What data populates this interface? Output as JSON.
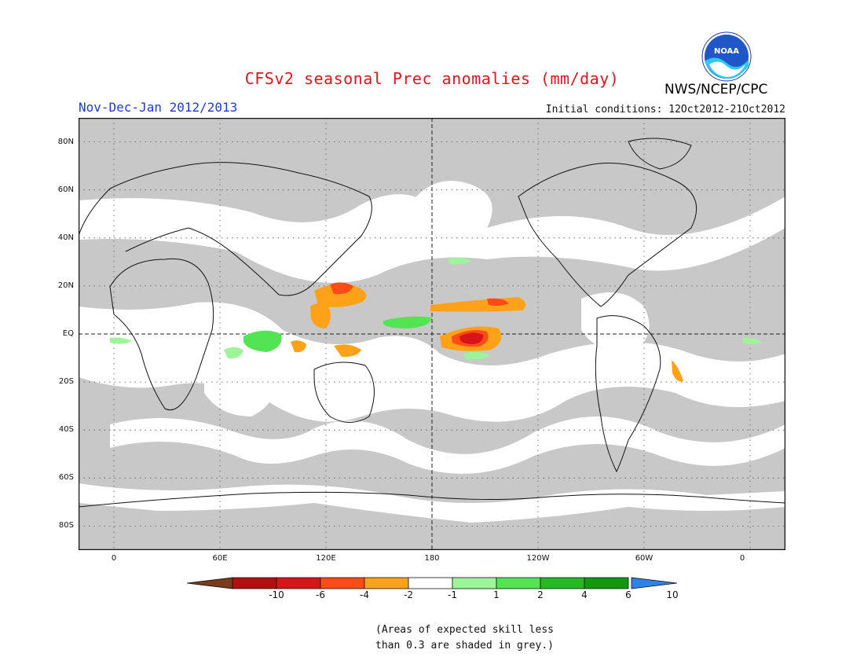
{
  "header": {
    "title": "CFSv2 seasonal Prec anomalies (mm/day)",
    "season": "Nov-Dec-Jan 2012/2013",
    "initial_conditions": "Initial conditions: 12Oct2012-21Oct2012",
    "agency": "NWS/NCEP/CPC",
    "logo_text": "NOAA"
  },
  "map": {
    "lat_labels": [
      "80N",
      "60N",
      "40N",
      "20N",
      "EQ",
      "20S",
      "40S",
      "60S",
      "80S"
    ],
    "lat_values": [
      80,
      60,
      40,
      20,
      0,
      -20,
      -40,
      -60,
      -80
    ],
    "lon_labels": [
      "0",
      "60E",
      "120E",
      "180",
      "120W",
      "60W",
      "0"
    ],
    "lon_values": [
      0,
      60,
      120,
      180,
      240,
      300,
      360
    ],
    "lat_range": [
      -90,
      90
    ],
    "lon_range": [
      -20,
      380
    ],
    "reference_lines": [
      "EQ",
      "180"
    ],
    "grey_meaning": "low skill",
    "anomaly_regions": [
      {
        "name": "central-pacific-dry",
        "lon": 205,
        "lat": -1,
        "category": "-6"
      },
      {
        "name": "maritime-continent-dry",
        "lon": 130,
        "lat": 16,
        "category": "-2"
      },
      {
        "name": "north-pacific-dry",
        "lon": 215,
        "lat": 12,
        "category": "-2"
      },
      {
        "name": "indian-ocean-wet",
        "lon": 87,
        "lat": -3,
        "category": "2"
      },
      {
        "name": "west-pacific-wet",
        "lon": 168,
        "lat": 4,
        "category": "2"
      },
      {
        "name": "brazil-dry",
        "lon": 323,
        "lat": -13,
        "category": "-2"
      }
    ]
  },
  "colorbar": {
    "labels": [
      "-10",
      "-6",
      "-4",
      "-2",
      "-1",
      "1",
      "2",
      "4",
      "6",
      "10"
    ],
    "colors": [
      "#7a3b1e",
      "#b50d10",
      "#d8141b",
      "#ff4c16",
      "#ffa21a",
      "#ffffff",
      "#9df59a",
      "#52e452",
      "#22bb22",
      "#109a10",
      "#2f82e8"
    ]
  },
  "note": {
    "line1": "(Areas of expected skill less",
    "line2": "than 0.3 are shaded in grey.)"
  }
}
